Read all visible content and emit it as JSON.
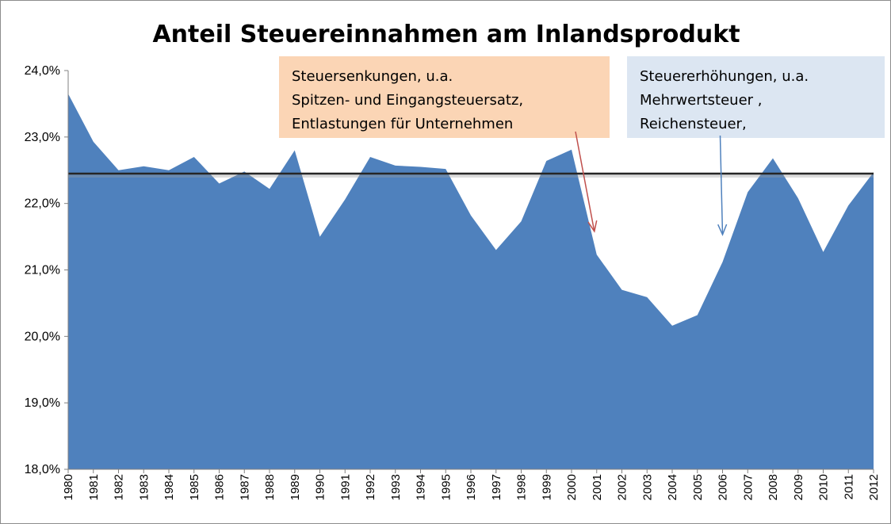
{
  "chart_data": {
    "type": "area",
    "title": "Anteil Steuereinnahmen am Inlandsprodukt",
    "xlabel": "",
    "ylabel": "",
    "x": [
      "1980",
      "1981",
      "1982",
      "1983",
      "1984",
      "1985",
      "1986",
      "1987",
      "1988",
      "1989",
      "1990",
      "1991",
      "1992",
      "1993",
      "1994",
      "1995",
      "1996",
      "1997",
      "1998",
      "1999",
      "2000",
      "2001",
      "2002",
      "2003",
      "2004",
      "2005",
      "2006",
      "2007",
      "2008",
      "2009",
      "2010",
      "2011",
      "2012"
    ],
    "values": [
      23.65,
      22.93,
      22.5,
      22.56,
      22.5,
      22.7,
      22.3,
      22.48,
      22.22,
      22.8,
      21.5,
      22.06,
      22.7,
      22.57,
      22.55,
      22.52,
      21.82,
      21.3,
      21.73,
      22.64,
      22.81,
      21.23,
      20.7,
      20.59,
      20.16,
      20.32,
      21.12,
      22.17,
      22.68,
      22.08,
      21.27,
      21.97,
      22.47
    ],
    "ylim": [
      18,
      24
    ],
    "yticks": [
      "18,0%",
      "19,0%",
      "20,0%",
      "21,0%",
      "22,0%",
      "23,0%",
      "24,0%"
    ],
    "average_line": 22.45,
    "grid": false,
    "legend": "none",
    "colors": {
      "area": "#4f81bd",
      "average_line": "#262626",
      "arrow_left": "#c0504d",
      "arrow_right": "#4f81bd",
      "box_left": "#fbd5b5",
      "box_right": "#dce6f2"
    },
    "annotations": [
      {
        "lines": [
          "Steuersenkungen, u.a.",
          "Spitzen- und Eingangsteuersatz,",
          "Entlastungen für Unternehmen"
        ],
        "arrow_from_x": "2000",
        "arrow_to_x": "2001",
        "arrow_to_y": 21.7
      },
      {
        "lines": [
          "Steuererhöhungen, u.a.",
          "Mehrwertsteuer ,",
          "Reichensteuer,"
        ],
        "arrow_from_x": "2006",
        "arrow_to_x": "2006",
        "arrow_to_y": 21.65
      }
    ]
  }
}
